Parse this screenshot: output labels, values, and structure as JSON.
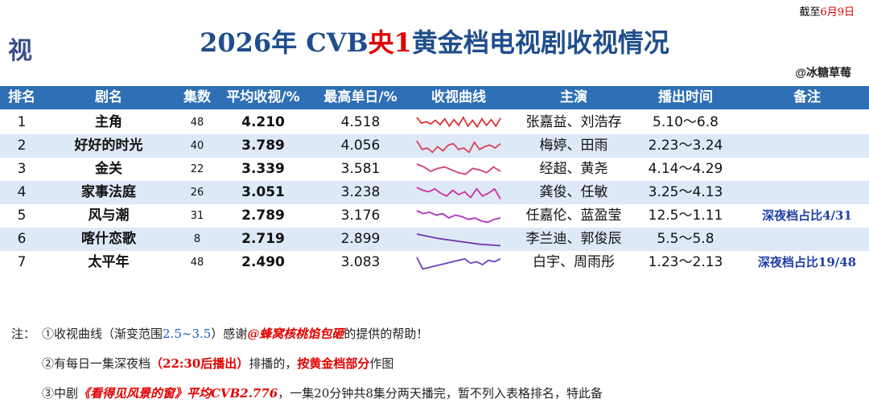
{
  "header": {
    "date": {
      "prefix": "截至",
      "date": "6月9日"
    },
    "logo": "视",
    "title": {
      "part1": "2026年 CVB",
      "part2": "央1",
      "part3": "黄金档电视剧收视情况"
    },
    "author": "@冰糖草莓"
  },
  "table": {
    "columns": [
      "排名",
      "剧名",
      "集数",
      "平均收视/%",
      "最高单日/%",
      "收视曲线",
      "主演",
      "播出时间",
      "备注"
    ],
    "rows": [
      [
        "1",
        "主角",
        "48",
        "4.210",
        "4.518",
        "张嘉益、刘浩存",
        "5.10～6.8",
        null
      ],
      [
        "2",
        "好好的时光",
        "40",
        "3.789",
        "4.056",
        "梅婷、田雨",
        "2.23～3.24",
        null
      ],
      [
        "3",
        "金关",
        "22",
        "3.339",
        "3.581",
        "经超、黄尧",
        "4.14～4.29",
        null
      ],
      [
        "4",
        "家事法庭",
        "26",
        "3.051",
        "3.238",
        "龚俊、任敏",
        "3.25～4.13",
        null
      ],
      [
        "5",
        "风与潮",
        "31",
        "2.789",
        "3.176",
        "任嘉伦、蓝盈莹",
        "12.5～1.11",
        "深夜档占比4/31"
      ],
      [
        "6",
        "喀什恋歌",
        "8",
        "2.719",
        "2.899",
        "李兰迪、郭俊辰",
        "5.5～5.8",
        null
      ],
      [
        "7",
        "太平年",
        "48",
        "2.490",
        "3.083",
        "白宇、周雨彤",
        "1.23～2.13",
        "深夜档占比19/48"
      ]
    ]
  },
  "notes": {
    "label": "注：",
    "items": [
      [
        "①收视曲线（渐变范围",
        "2.5~3.5",
        "）感谢",
        "@蜂窝核桃馅包砸",
        "的提供的帮助！"
      ],
      [
        "②有每日一集深夜档",
        "（22:30后播出）",
        "排播的，",
        "按黄金档部分",
        "作图"
      ],
      [
        "③中剧",
        "《看得见风景的窗》平均CVB2.776",
        "，一集20分钟共8集分两天播完，暂不列入表格排名，特此备"
      ]
    ]
  }
}
